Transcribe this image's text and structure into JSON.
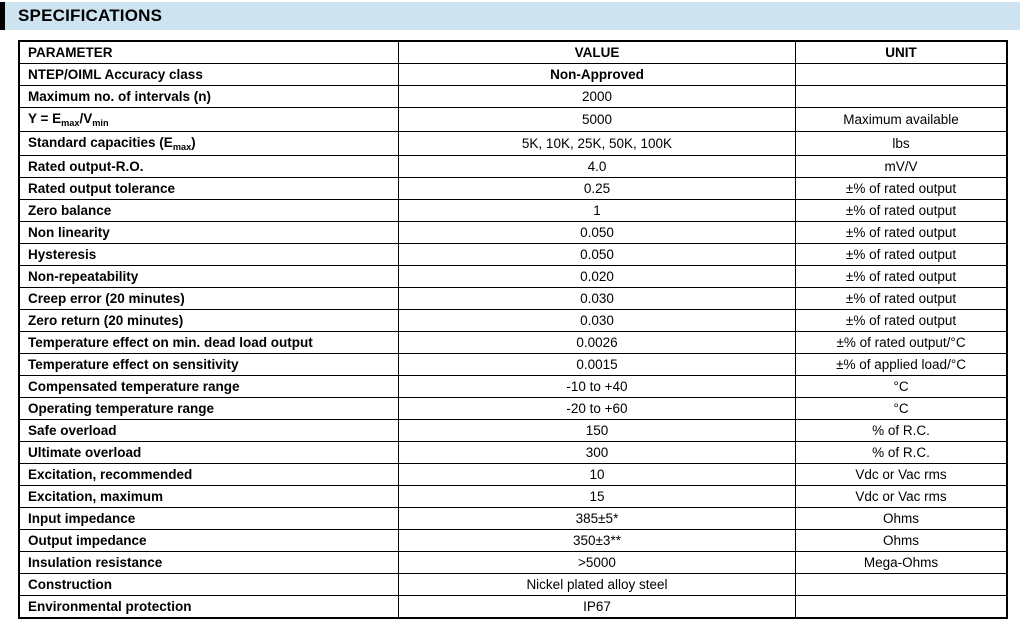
{
  "page": {
    "title": "SPECIFICATIONS"
  },
  "theme": {
    "band_background": "#cde4f0",
    "accent_bar_color": "#000000",
    "border_color": "#000000",
    "text_color": "#000000"
  },
  "table": {
    "columns": {
      "parameter": "PARAMETER",
      "value": "VALUE",
      "unit": "UNIT"
    },
    "rows": [
      {
        "parameter": "NTEP/OIML Accuracy class",
        "value": "Non-Approved",
        "value_bold": true,
        "unit": ""
      },
      {
        "parameter": "Maximum no. of intervals (n)",
        "value": "2000",
        "unit": ""
      },
      {
        "parameter": "Y = E_{max}/V_{min}",
        "value": "5000",
        "unit": "Maximum available"
      },
      {
        "parameter": "Standard capacities (E_{max})",
        "value": "5K, 10K, 25K, 50K, 100K",
        "unit": "lbs"
      },
      {
        "parameter": "Rated output-R.O.",
        "value": "4.0",
        "unit": "mV/V"
      },
      {
        "parameter": "Rated output tolerance",
        "value": "0.25",
        "unit": "±% of rated output"
      },
      {
        "parameter": "Zero balance",
        "value": "1",
        "unit": "±% of rated output"
      },
      {
        "parameter": "Non linearity",
        "value": "0.050",
        "unit": "±% of rated output"
      },
      {
        "parameter": "Hysteresis",
        "value": "0.050",
        "unit": "±% of rated output"
      },
      {
        "parameter": "Non-repeatability",
        "value": "0.020",
        "unit": "±% of rated output"
      },
      {
        "parameter": "Creep error (20 minutes)",
        "value": "0.030",
        "unit": "±% of rated output"
      },
      {
        "parameter": "Zero return (20 minutes)",
        "value": "0.030",
        "unit": "±% of rated output"
      },
      {
        "parameter": "Temperature effect on min. dead load output",
        "value": "0.0026",
        "unit": "±% of rated output/°C"
      },
      {
        "parameter": "Temperature effect on sensitivity",
        "value": "0.0015",
        "unit": "±% of applied load/°C"
      },
      {
        "parameter": "Compensated temperature range",
        "value": "-10 to +40",
        "unit": "°C"
      },
      {
        "parameter": "Operating temperature range",
        "value": "-20 to +60",
        "unit": "°C"
      },
      {
        "parameter": "Safe overload",
        "value": "150",
        "unit": "% of R.C."
      },
      {
        "parameter": "Ultimate overload",
        "value": "300",
        "unit": "% of R.C."
      },
      {
        "parameter": "Excitation, recommended",
        "value": "10",
        "unit": "Vdc or Vac rms"
      },
      {
        "parameter": "Excitation, maximum",
        "value": "15",
        "unit": "Vdc or Vac rms"
      },
      {
        "parameter": "Input impedance",
        "value": "385±5*",
        "unit": "Ohms"
      },
      {
        "parameter": "Output impedance",
        "value": "350±3**",
        "unit": "Ohms"
      },
      {
        "parameter": "Insulation resistance",
        "value": ">5000",
        "unit": "Mega-Ohms"
      },
      {
        "parameter": "Construction",
        "value": "Nickel plated alloy steel",
        "unit": ""
      },
      {
        "parameter": "Environmental protection",
        "value": "IP67",
        "unit": ""
      }
    ]
  }
}
